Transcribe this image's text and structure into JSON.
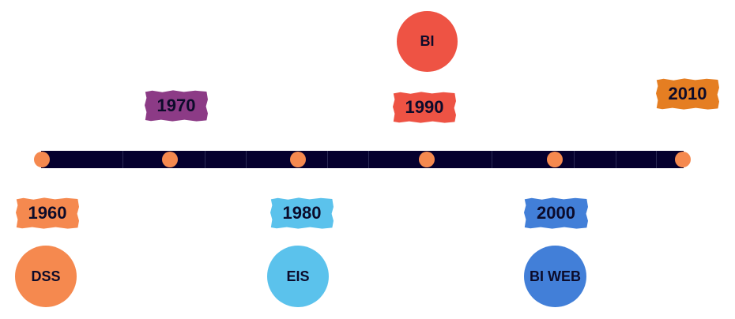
{
  "timeline": {
    "milestones": [
      {
        "year": "1960",
        "label": "DSS",
        "year_color": "#f5894f",
        "circle_color": "#f5894f"
      },
      {
        "year": "1970",
        "label": "",
        "year_color": "#8c3b86",
        "circle_color": ""
      },
      {
        "year": "1980",
        "label": "EIS",
        "year_color": "#5bc2ec",
        "circle_color": "#5bc2ec"
      },
      {
        "year": "1990",
        "label": "BI",
        "year_color": "#ee5344",
        "circle_color": "#ee5344"
      },
      {
        "year": "2000",
        "label": "BI WEB",
        "year_color": "#427fd8",
        "circle_color": "#427fd8"
      },
      {
        "year": "2010",
        "label": "",
        "year_color": "#e57e22",
        "circle_color": ""
      }
    ],
    "bar_color": "#05002e",
    "dot_color": "#f5894f"
  }
}
